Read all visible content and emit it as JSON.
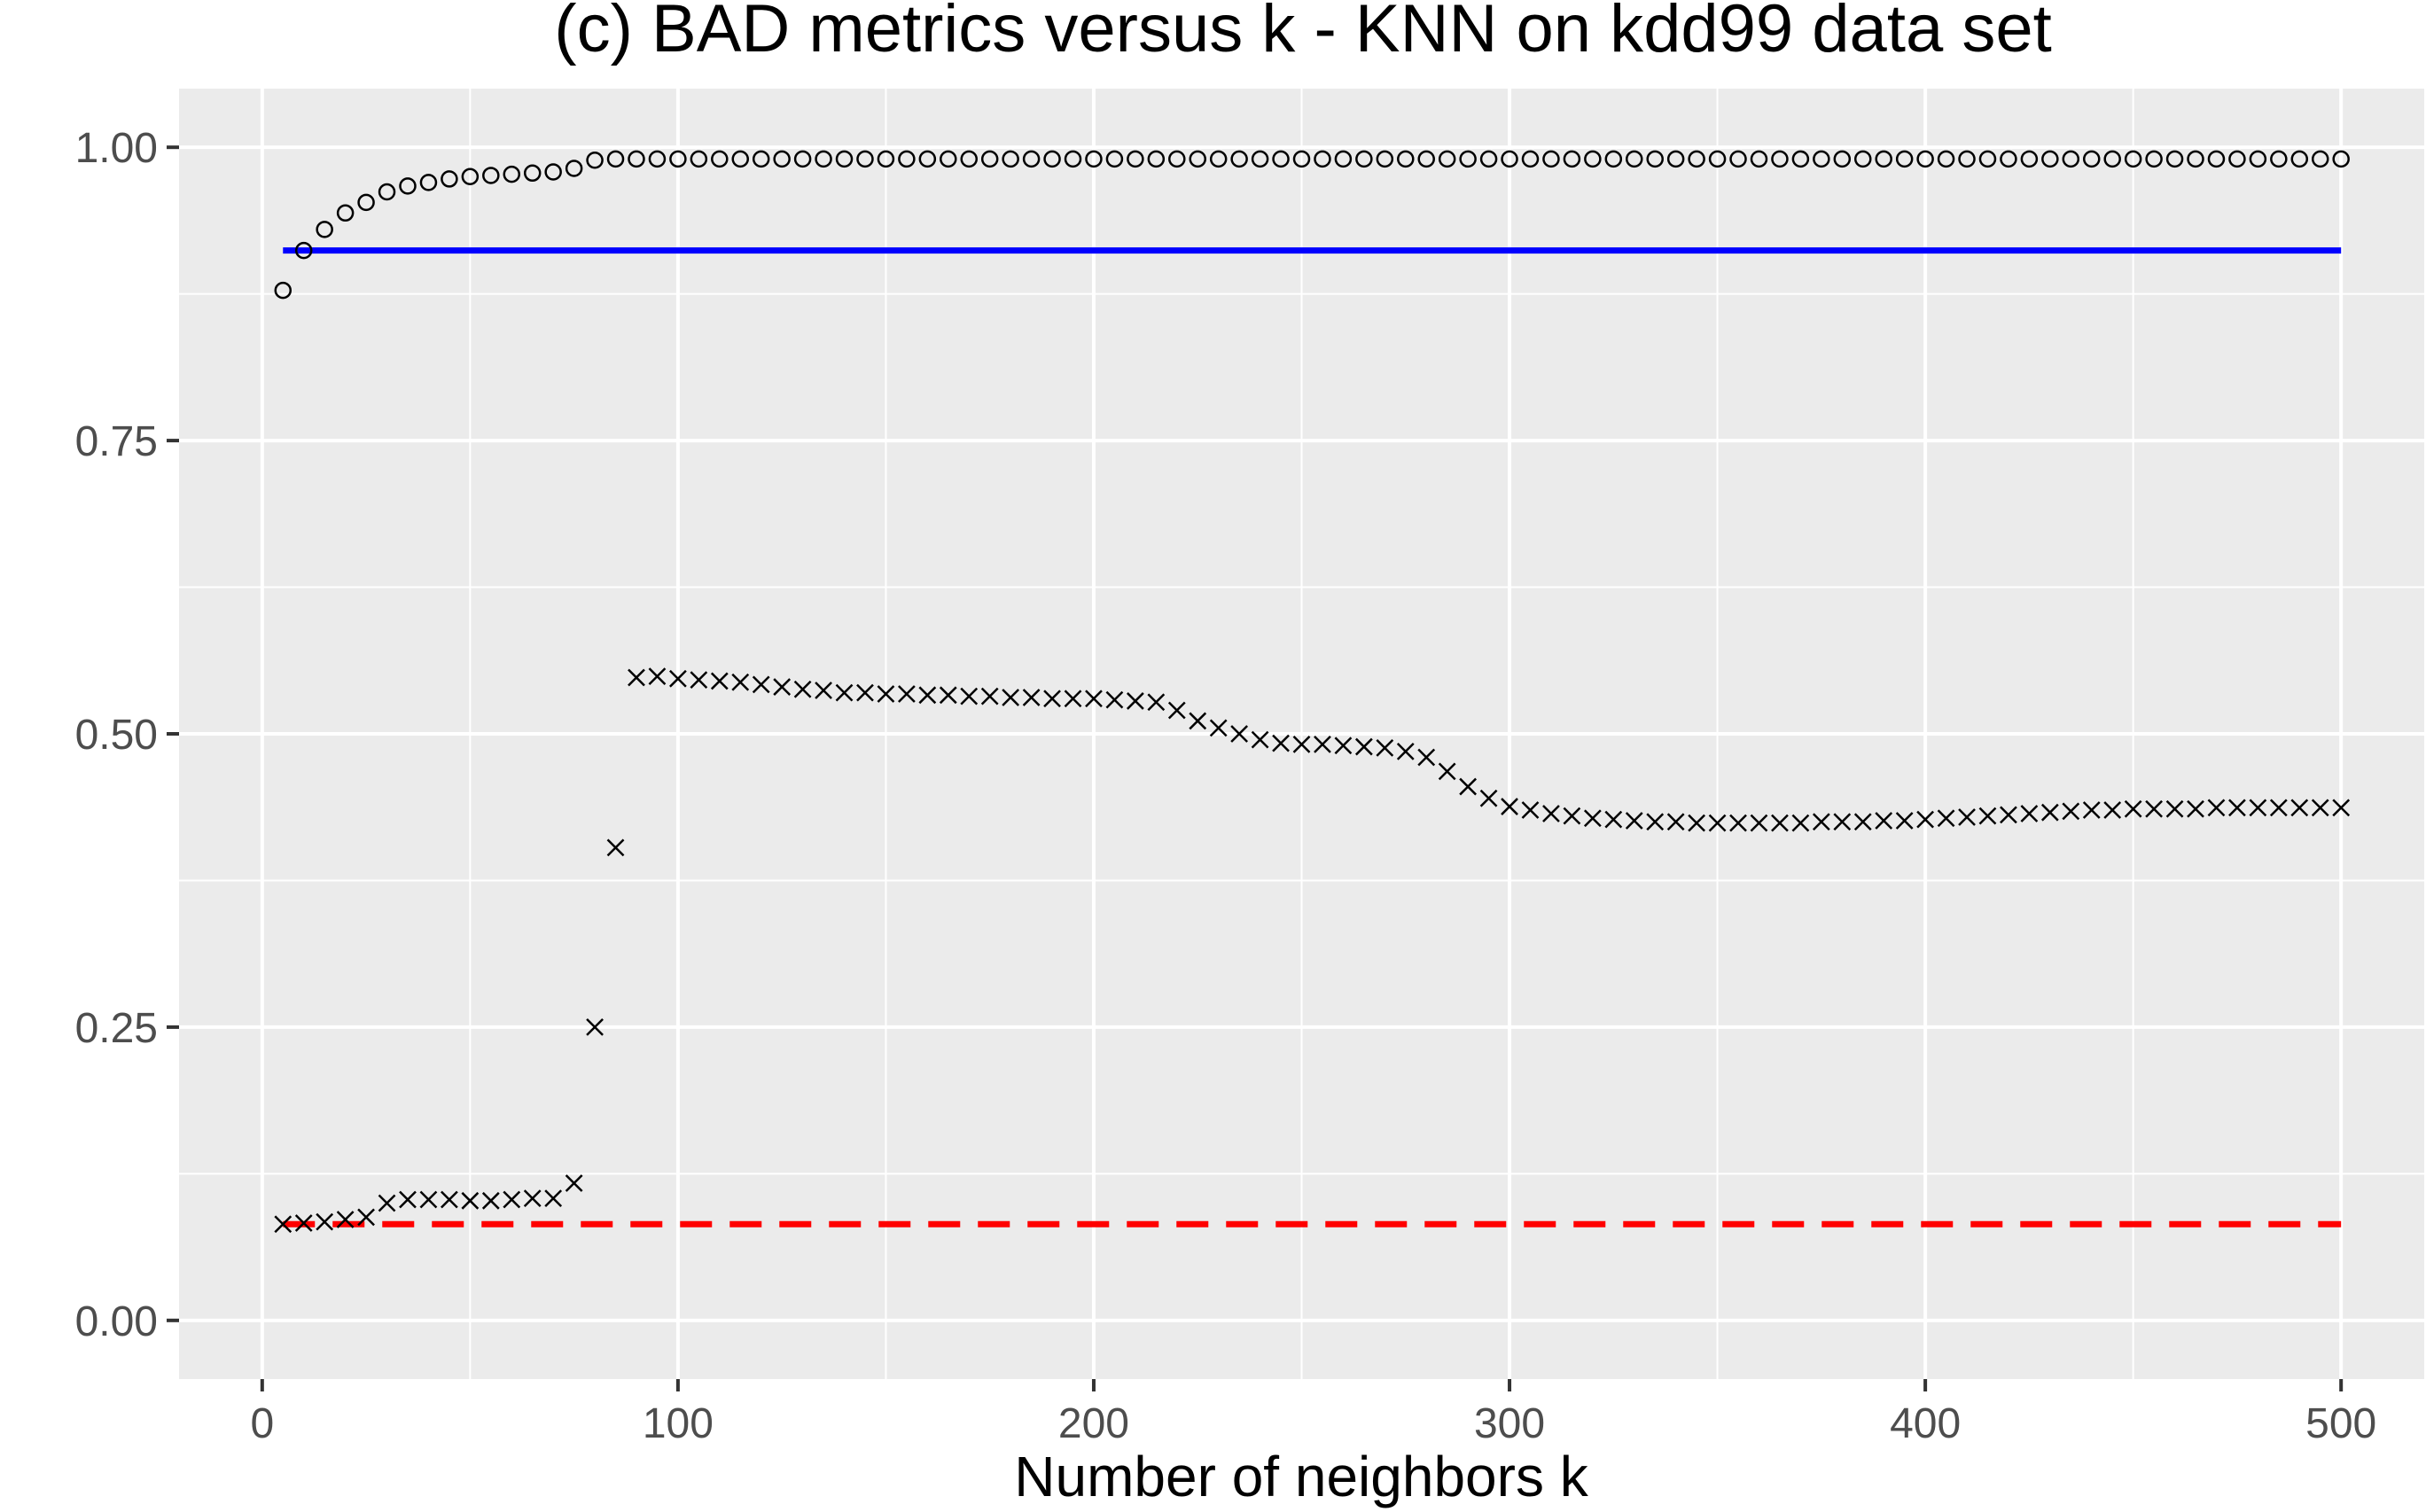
{
  "chart_data": {
    "type": "scatter",
    "title": "(c) BAD metrics versus k - KNN on kdd99 data set",
    "xlabel": "Number of neighbors k",
    "ylabel": "",
    "xlim": [
      -20,
      520
    ],
    "ylim": [
      -0.05,
      1.05
    ],
    "x_ticks": [
      0,
      100,
      200,
      300,
      400,
      500
    ],
    "y_ticks": [
      0.0,
      0.25,
      0.5,
      0.75,
      1.0
    ],
    "x_tick_labels": [
      "0",
      "100",
      "200",
      "300",
      "400",
      "500"
    ],
    "y_tick_labels": [
      "0.00",
      "0.25",
      "0.50",
      "0.75",
      "1.00"
    ],
    "grid": true,
    "legend": "none",
    "background_color": "#ebebeb",
    "grid_color": "#ffffff",
    "series": [
      {
        "marker": "circle",
        "color": "#000000",
        "x": [
          5,
          10,
          15,
          20,
          25,
          30,
          35,
          40,
          45,
          50,
          55,
          60,
          65,
          70,
          75,
          80,
          85,
          90,
          95,
          100,
          105,
          110,
          115,
          120,
          125,
          130,
          135,
          140,
          145,
          150,
          155,
          160,
          165,
          170,
          175,
          180,
          185,
          190,
          195,
          200,
          205,
          210,
          215,
          220,
          225,
          230,
          235,
          240,
          245,
          250,
          255,
          260,
          265,
          270,
          275,
          280,
          285,
          290,
          295,
          300,
          305,
          310,
          315,
          320,
          325,
          330,
          335,
          340,
          345,
          350,
          355,
          360,
          365,
          370,
          375,
          380,
          385,
          390,
          395,
          400,
          405,
          410,
          415,
          420,
          425,
          430,
          435,
          440,
          445,
          450,
          455,
          460,
          465,
          470,
          475,
          480,
          485,
          490,
          495,
          500
        ],
        "y": [
          0.878,
          0.912,
          0.93,
          0.944,
          0.953,
          0.962,
          0.967,
          0.97,
          0.973,
          0.975,
          0.976,
          0.977,
          0.978,
          0.979,
          0.982,
          0.989,
          0.99,
          0.99,
          0.99,
          0.99,
          0.99,
          0.99,
          0.99,
          0.99,
          0.99,
          0.99,
          0.99,
          0.99,
          0.99,
          0.99,
          0.99,
          0.99,
          0.99,
          0.99,
          0.99,
          0.99,
          0.99,
          0.99,
          0.99,
          0.99,
          0.99,
          0.99,
          0.99,
          0.99,
          0.99,
          0.99,
          0.99,
          0.99,
          0.99,
          0.99,
          0.99,
          0.99,
          0.99,
          0.99,
          0.99,
          0.99,
          0.99,
          0.99,
          0.99,
          0.99,
          0.99,
          0.99,
          0.99,
          0.99,
          0.99,
          0.99,
          0.99,
          0.99,
          0.99,
          0.99,
          0.99,
          0.99,
          0.99,
          0.99,
          0.99,
          0.99,
          0.99,
          0.99,
          0.99,
          0.99,
          0.99,
          0.99,
          0.99,
          0.99,
          0.99,
          0.99,
          0.99,
          0.99,
          0.99,
          0.99,
          0.99,
          0.99,
          0.99,
          0.99,
          0.99,
          0.99,
          0.99,
          0.99,
          0.99,
          0.99
        ]
      },
      {
        "marker": "cross",
        "color": "#000000",
        "x": [
          5,
          10,
          15,
          20,
          25,
          30,
          35,
          40,
          45,
          50,
          55,
          60,
          65,
          70,
          75,
          80,
          85,
          90,
          95,
          100,
          105,
          110,
          115,
          120,
          125,
          130,
          135,
          140,
          145,
          150,
          155,
          160,
          165,
          170,
          175,
          180,
          185,
          190,
          195,
          200,
          205,
          210,
          215,
          220,
          225,
          230,
          235,
          240,
          245,
          250,
          255,
          260,
          265,
          270,
          275,
          280,
          285,
          290,
          295,
          300,
          305,
          310,
          315,
          320,
          325,
          330,
          335,
          340,
          345,
          350,
          355,
          360,
          365,
          370,
          375,
          380,
          385,
          390,
          395,
          400,
          405,
          410,
          415,
          420,
          425,
          430,
          435,
          440,
          445,
          450,
          455,
          460,
          465,
          470,
          475,
          480,
          485,
          490,
          495,
          500
        ],
        "y": [
          0.082,
          0.083,
          0.084,
          0.086,
          0.088,
          0.1,
          0.103,
          0.103,
          0.103,
          0.102,
          0.102,
          0.103,
          0.104,
          0.104,
          0.117,
          0.25,
          0.403,
          0.548,
          0.549,
          0.547,
          0.546,
          0.545,
          0.544,
          0.542,
          0.54,
          0.538,
          0.537,
          0.535,
          0.535,
          0.534,
          0.534,
          0.533,
          0.533,
          0.532,
          0.532,
          0.531,
          0.531,
          0.53,
          0.53,
          0.53,
          0.529,
          0.528,
          0.527,
          0.52,
          0.511,
          0.505,
          0.5,
          0.495,
          0.492,
          0.491,
          0.491,
          0.49,
          0.489,
          0.488,
          0.485,
          0.48,
          0.468,
          0.455,
          0.445,
          0.438,
          0.435,
          0.432,
          0.43,
          0.428,
          0.427,
          0.426,
          0.425,
          0.425,
          0.424,
          0.424,
          0.424,
          0.424,
          0.424,
          0.424,
          0.425,
          0.425,
          0.425,
          0.426,
          0.426,
          0.427,
          0.428,
          0.429,
          0.43,
          0.431,
          0.432,
          0.433,
          0.434,
          0.435,
          0.435,
          0.436,
          0.436,
          0.436,
          0.436,
          0.437,
          0.437,
          0.437,
          0.437,
          0.437,
          0.437,
          0.437
        ]
      },
      {
        "marker": "solid-line",
        "color": "#0000ff",
        "x": [
          5,
          500
        ],
        "y": [
          0.912,
          0.912
        ]
      },
      {
        "marker": "dashed-line",
        "color": "#ff0000",
        "x": [
          5,
          500
        ],
        "y": [
          0.082,
          0.082
        ]
      }
    ]
  }
}
